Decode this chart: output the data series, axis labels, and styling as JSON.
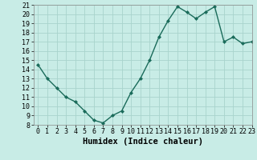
{
  "x": [
    0,
    1,
    2,
    3,
    4,
    5,
    6,
    7,
    8,
    9,
    10,
    11,
    12,
    13,
    14,
    15,
    16,
    17,
    18,
    19,
    20,
    21,
    22,
    23
  ],
  "y": [
    14.5,
    13.0,
    12.0,
    11.0,
    10.5,
    9.5,
    8.5,
    8.2,
    9.0,
    9.5,
    11.5,
    13.0,
    15.0,
    17.5,
    19.3,
    20.8,
    20.2,
    19.5,
    20.2,
    20.8,
    17.0,
    17.5,
    16.8,
    17.0
  ],
  "xlabel": "Humidex (Indice chaleur)",
  "ylim": [
    8,
    21
  ],
  "xlim": [
    -0.5,
    23
  ],
  "yticks": [
    8,
    9,
    10,
    11,
    12,
    13,
    14,
    15,
    16,
    17,
    18,
    19,
    20,
    21
  ],
  "xticks": [
    0,
    1,
    2,
    3,
    4,
    5,
    6,
    7,
    8,
    9,
    10,
    11,
    12,
    13,
    14,
    15,
    16,
    17,
    18,
    19,
    20,
    21,
    22,
    23
  ],
  "line_color": "#1a6b5a",
  "bg_color": "#c8ece6",
  "grid_color": "#a8d4cc",
  "marker": "D",
  "marker_size": 2.0,
  "line_width": 1.0,
  "xlabel_fontsize": 7.5,
  "tick_fontsize": 6.0
}
